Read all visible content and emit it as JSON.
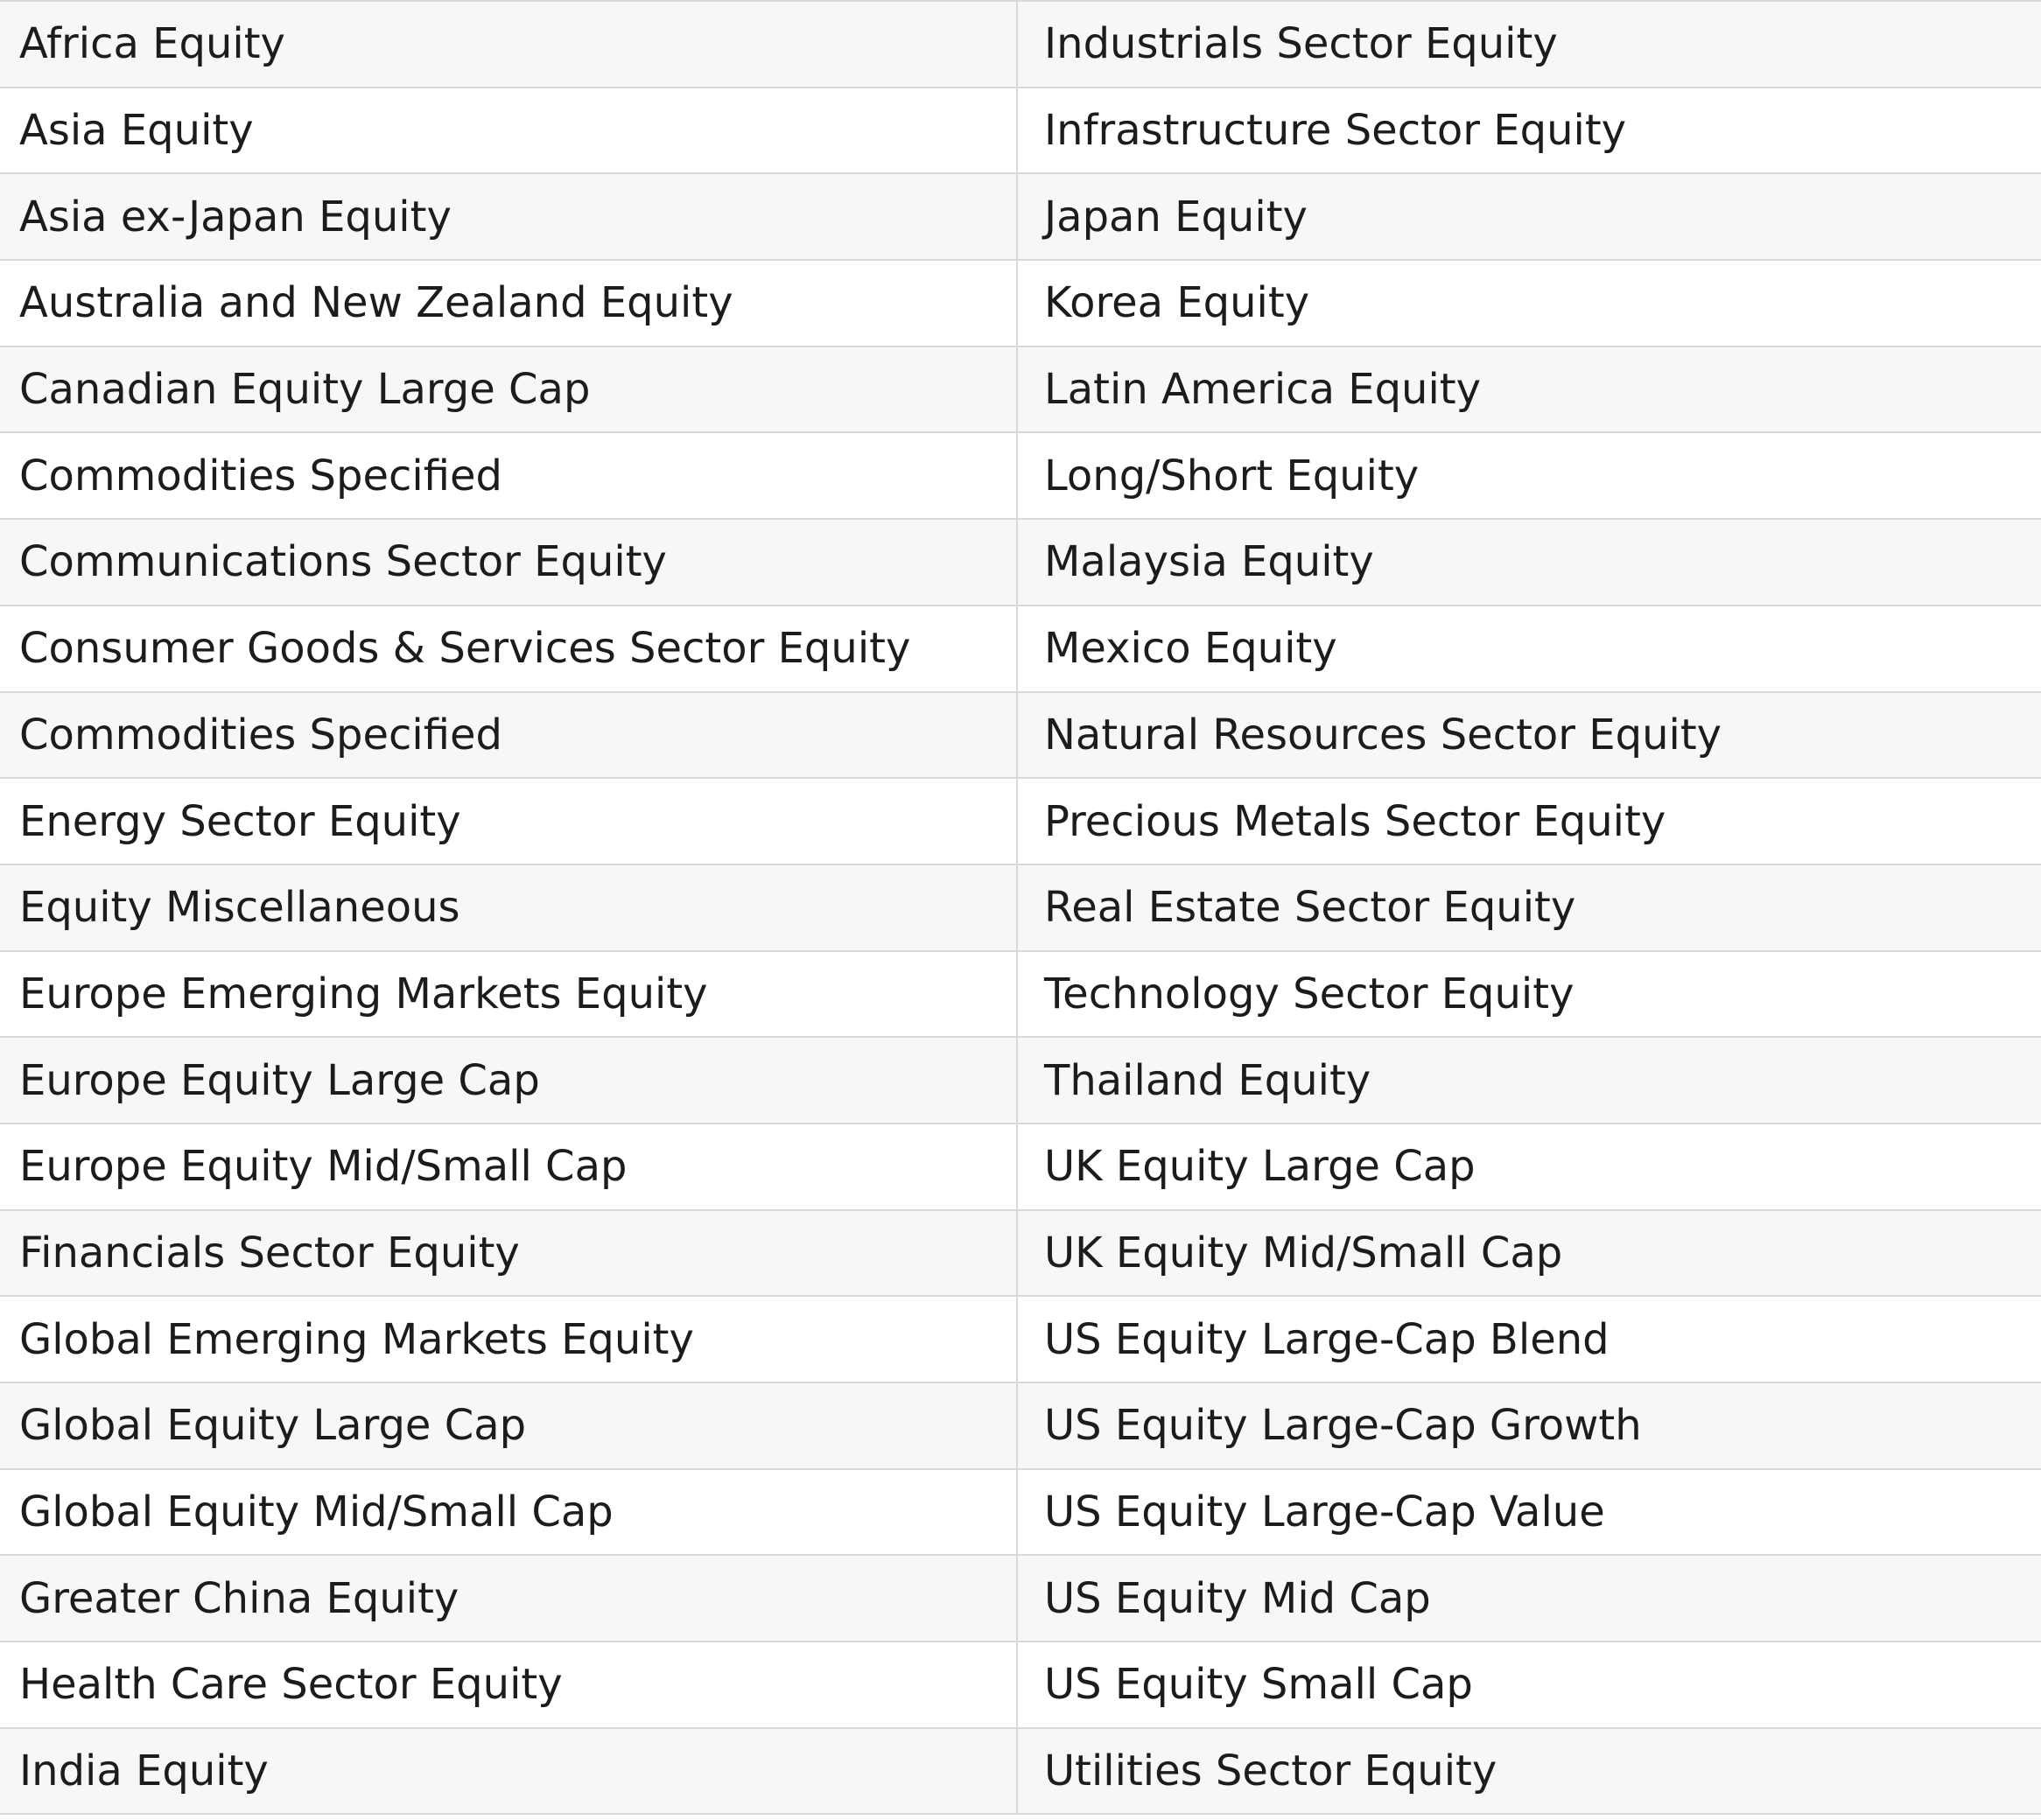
{
  "table": {
    "rows": [
      [
        "Africa Equity",
        "Industrials Sector Equity"
      ],
      [
        "Asia Equity",
        "Infrastructure Sector Equity"
      ],
      [
        "Asia ex-Japan Equity",
        "Japan Equity"
      ],
      [
        "Australia and New Zealand Equity",
        "Korea Equity"
      ],
      [
        "Canadian Equity Large Cap",
        "Latin America Equity"
      ],
      [
        "Commodities Specified",
        "Long/Short Equity"
      ],
      [
        "Communications Sector Equity",
        "Malaysia Equity"
      ],
      [
        "Consumer Goods & Services Sector Equity",
        "Mexico Equity"
      ],
      [
        "Commodities Specified",
        "Natural Resources Sector Equity"
      ],
      [
        "Energy Sector Equity",
        "Precious Metals Sector Equity"
      ],
      [
        "Equity Miscellaneous",
        "Real Estate Sector Equity"
      ],
      [
        "Europe Emerging Markets Equity",
        "Technology Sector Equity"
      ],
      [
        "Europe Equity Large Cap",
        "Thailand Equity"
      ],
      [
        "Europe Equity Mid/Small Cap",
        "UK Equity Large Cap"
      ],
      [
        "Financials Sector Equity",
        "UK Equity Mid/Small Cap"
      ],
      [
        "Global Emerging Markets Equity",
        "US Equity Large-Cap Blend"
      ],
      [
        "Global Equity Large Cap",
        "US Equity Large-Cap Growth"
      ],
      [
        "Global Equity Mid/Small Cap",
        "US Equity Large-Cap Value"
      ],
      [
        "Greater China Equity",
        "US Equity Mid Cap"
      ],
      [
        "Health Care Sector Equity",
        "US Equity Small Cap"
      ],
      [
        "India Equity",
        "Utilities Sector Equity"
      ]
    ]
  },
  "colors": {
    "row_shaded": "#f7f7f9",
    "row_plain": "#ffffff",
    "border": "#d9d9dc",
    "text": "#1c1c1c"
  }
}
